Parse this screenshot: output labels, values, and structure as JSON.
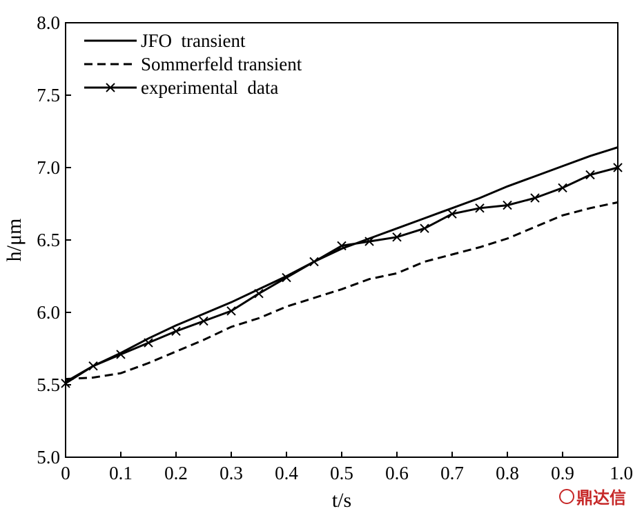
{
  "chart_data": {
    "type": "line",
    "xlabel": "t/s",
    "ylabel": "h/μm",
    "xlim": [
      0,
      1.0
    ],
    "ylim": [
      5.0,
      8.0
    ],
    "x_ticks": [
      "0",
      "0.1",
      "0.2",
      "0.3",
      "0.4",
      "0.5",
      "0.6",
      "0.7",
      "0.8",
      "0.9",
      "1.0"
    ],
    "y_ticks": [
      "5.0",
      "5.5",
      "6.0",
      "6.5",
      "7.0",
      "7.5",
      "8.0"
    ],
    "legend_position": "top-left",
    "grid": false,
    "series": [
      {
        "name": "JFO  transient",
        "style": "solid",
        "x": [
          0,
          0.05,
          0.1,
          0.15,
          0.2,
          0.25,
          0.3,
          0.35,
          0.4,
          0.45,
          0.5,
          0.55,
          0.6,
          0.65,
          0.7,
          0.75,
          0.8,
          0.85,
          0.9,
          0.95,
          1.0
        ],
        "y": [
          5.52,
          5.63,
          5.72,
          5.82,
          5.91,
          5.99,
          6.07,
          6.16,
          6.25,
          6.35,
          6.44,
          6.51,
          6.58,
          6.65,
          6.72,
          6.79,
          6.87,
          6.94,
          7.01,
          7.08,
          7.14
        ]
      },
      {
        "name": "Sommerfeld transient",
        "style": "dashed",
        "x": [
          0,
          0.05,
          0.1,
          0.15,
          0.2,
          0.25,
          0.3,
          0.35,
          0.4,
          0.45,
          0.5,
          0.55,
          0.6,
          0.65,
          0.7,
          0.75,
          0.8,
          0.85,
          0.9,
          0.95,
          1.0
        ],
        "y": [
          5.54,
          5.55,
          5.58,
          5.65,
          5.73,
          5.81,
          5.9,
          5.96,
          6.04,
          6.1,
          6.16,
          6.23,
          6.27,
          6.35,
          6.4,
          6.45,
          6.51,
          6.59,
          6.67,
          6.72,
          6.76
        ]
      },
      {
        "name": "experimental  data",
        "style": "solid-x",
        "x": [
          0,
          0.05,
          0.1,
          0.15,
          0.2,
          0.25,
          0.3,
          0.35,
          0.4,
          0.45,
          0.5,
          0.55,
          0.6,
          0.65,
          0.7,
          0.75,
          0.8,
          0.85,
          0.9,
          0.95,
          1.0
        ],
        "y": [
          5.51,
          5.63,
          5.71,
          5.79,
          5.87,
          5.94,
          6.01,
          6.13,
          6.24,
          6.35,
          6.46,
          6.49,
          6.52,
          6.58,
          6.68,
          6.72,
          6.74,
          6.79,
          6.86,
          6.95,
          7.0
        ]
      }
    ]
  },
  "watermark": {
    "text": "鼎达信",
    "color": "#c62828"
  }
}
